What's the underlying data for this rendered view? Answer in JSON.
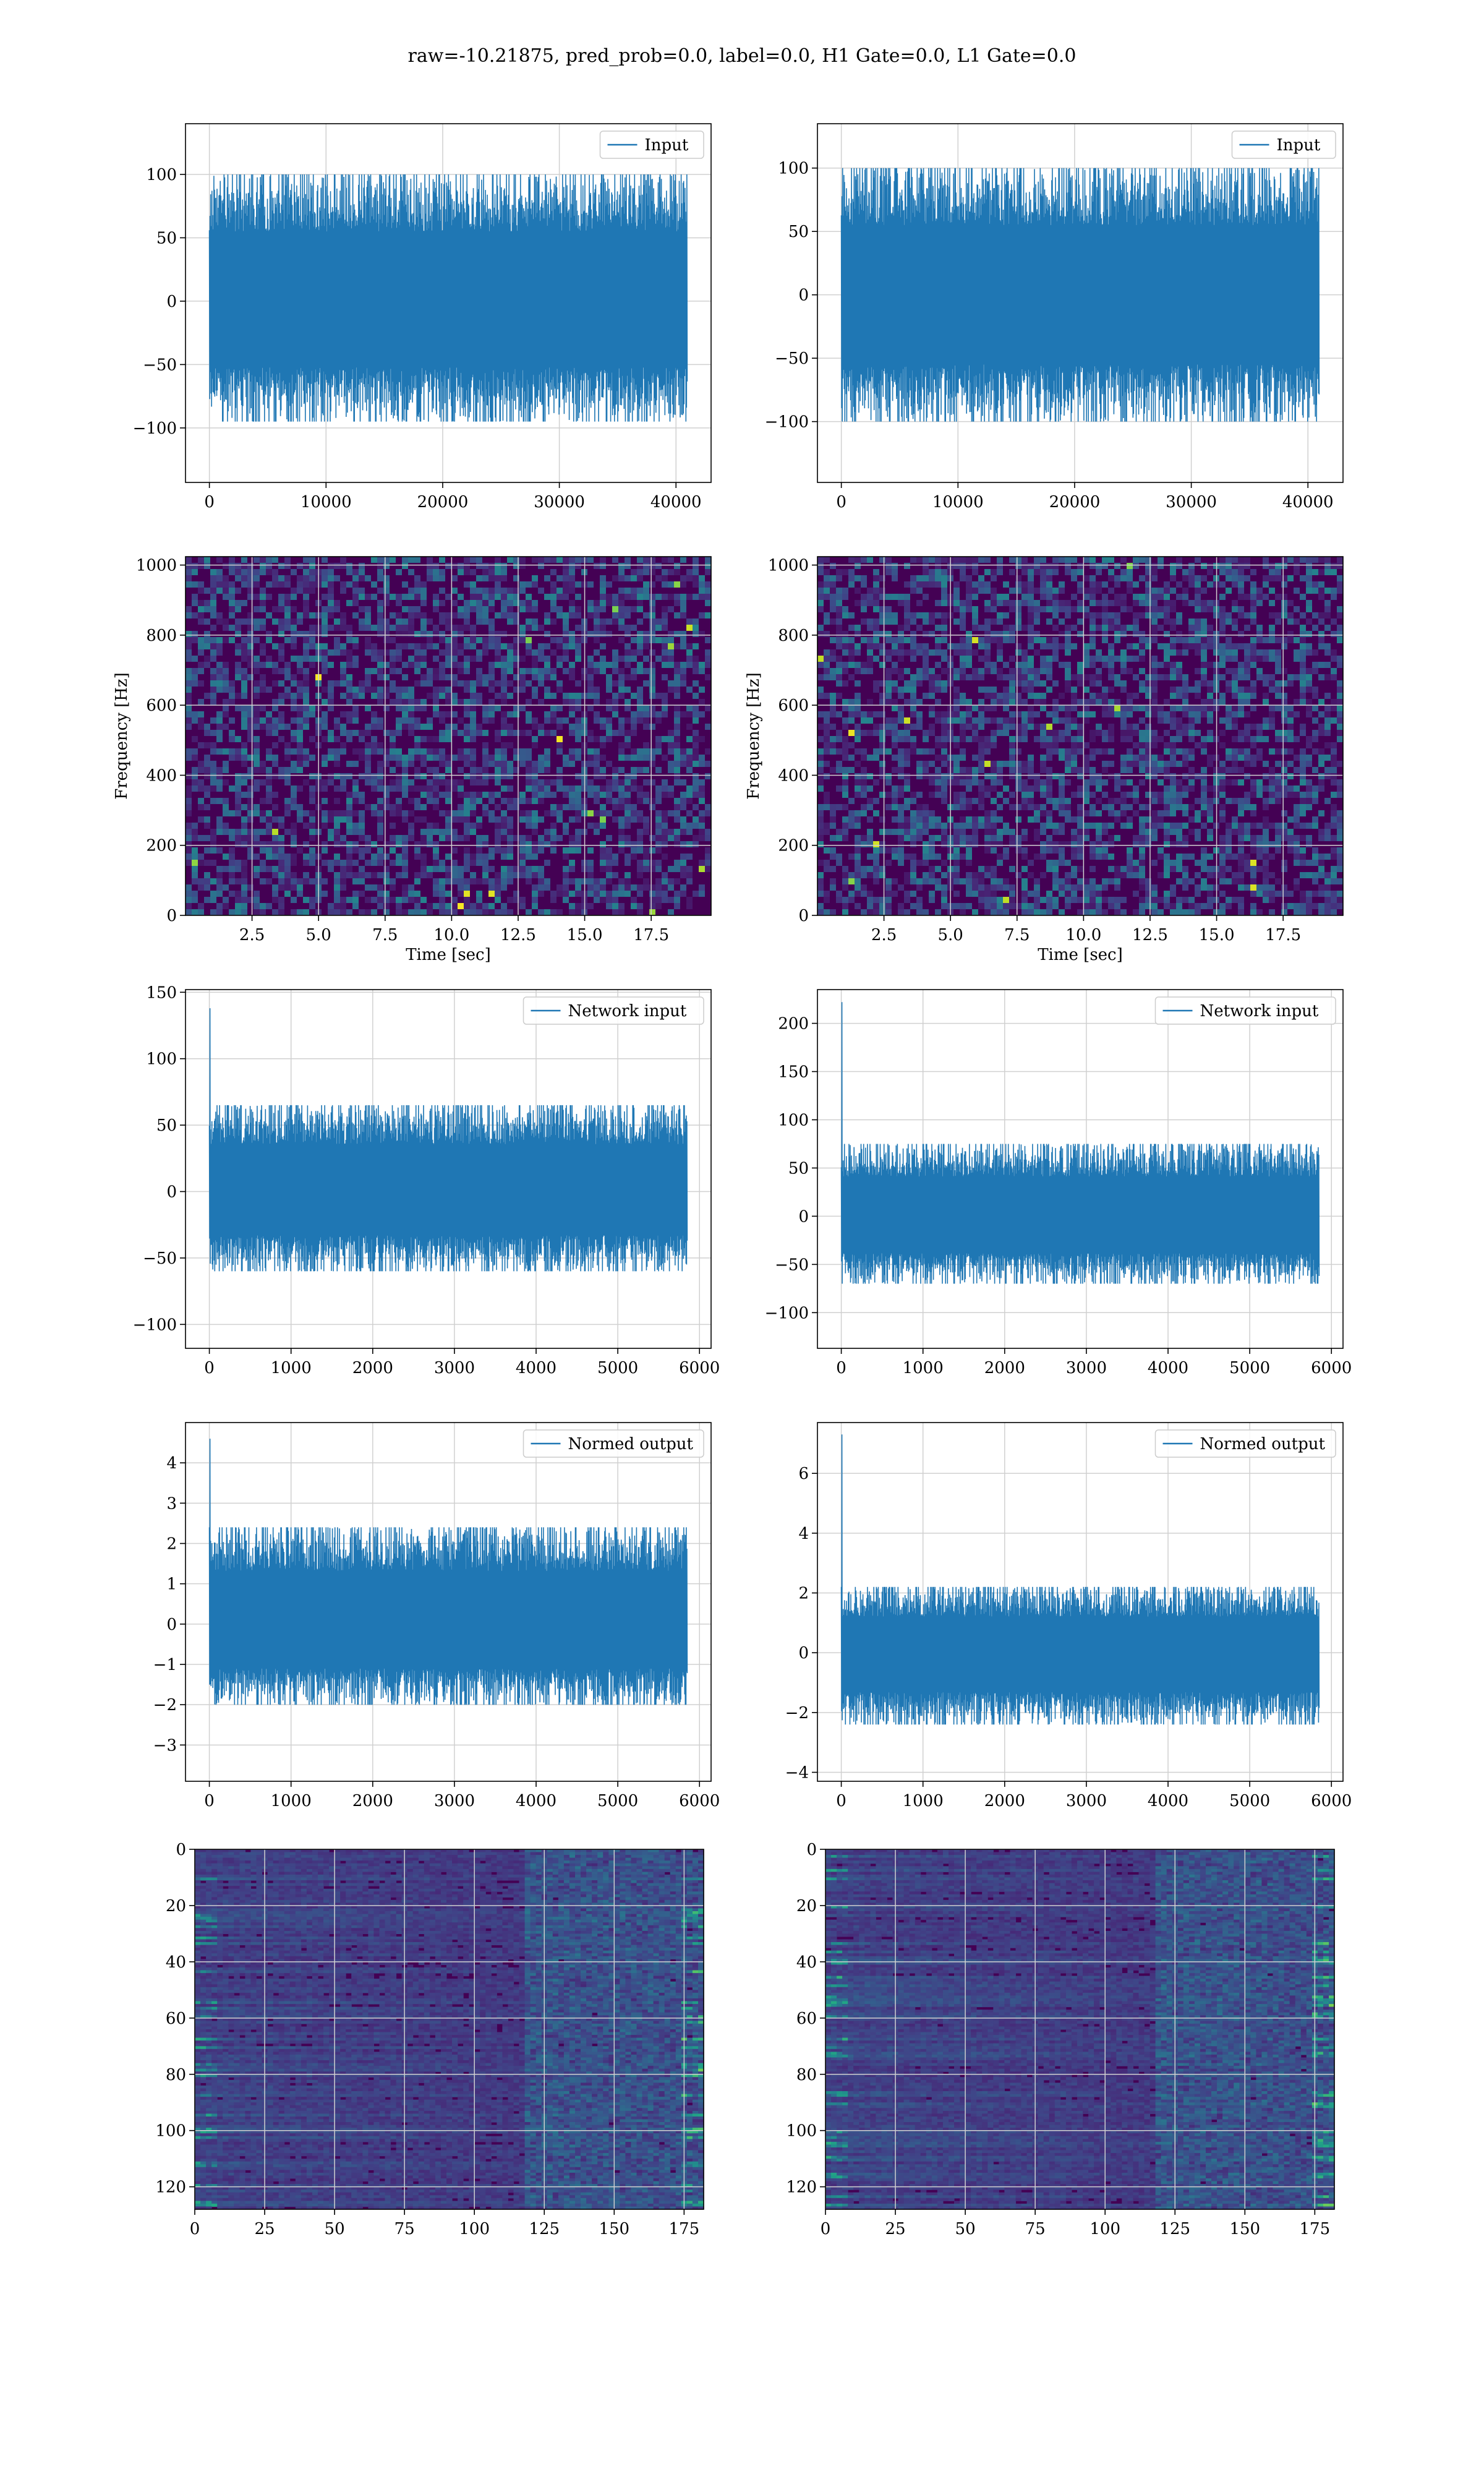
{
  "figure_title": "raw=-10.21875, pred_prob=0.0, label=0.0, H1 Gate=0.0, L1 Gate=0.0",
  "colors": {
    "series": "#1f77b4",
    "grid": "#d0d0d0",
    "viridis_low": "#440154",
    "viridis_mid": "#21918c",
    "viridis_high": "#fde725"
  },
  "chart_data": [
    {
      "type": "line",
      "row": 0,
      "col": 0,
      "series": [
        {
          "name": "Input",
          "color": "#1f77b4"
        }
      ],
      "x": {
        "range": [
          0,
          40960
        ],
        "envelope": [
          -95,
          100
        ]
      },
      "xlim": [
        -2048,
        43008
      ],
      "ylim": [
        -143,
        140
      ],
      "xticks": [
        0,
        10000,
        20000,
        30000,
        40000
      ],
      "xticklabels": [
        "0",
        "10000",
        "20000",
        "30000",
        "40000"
      ],
      "yticks": [
        -100,
        -50,
        0,
        50,
        100
      ],
      "yticklabels": [
        "−100",
        "−50",
        "0",
        "50",
        "100"
      ],
      "xlabel": "",
      "ylabel": "",
      "grid": true,
      "legend": "top-right"
    },
    {
      "type": "line",
      "row": 0,
      "col": 1,
      "series": [
        {
          "name": "Input",
          "color": "#1f77b4"
        }
      ],
      "x": {
        "range": [
          0,
          40960
        ],
        "envelope": [
          -100,
          100
        ]
      },
      "xlim": [
        -2048,
        43008
      ],
      "ylim": [
        -148,
        135
      ],
      "xticks": [
        0,
        10000,
        20000,
        30000,
        40000
      ],
      "xticklabels": [
        "0",
        "10000",
        "20000",
        "30000",
        "40000"
      ],
      "yticks": [
        -100,
        -50,
        0,
        50,
        100
      ],
      "yticklabels": [
        "−100",
        "−50",
        "0",
        "50",
        "100"
      ],
      "xlabel": "",
      "ylabel": "",
      "grid": true,
      "legend": "top-right"
    },
    {
      "type": "heatmap",
      "row": 1,
      "col": 0,
      "colormap": "viridis",
      "xlim": [
        0,
        19.75
      ],
      "ylim": [
        0,
        1024
      ],
      "xticks": [
        2.5,
        5.0,
        7.5,
        10.0,
        12.5,
        15.0,
        17.5
      ],
      "xticklabels": [
        "2.5",
        "5.0",
        "7.5",
        "10.0",
        "12.5",
        "15.0",
        "17.5"
      ],
      "yticks": [
        0,
        200,
        400,
        600,
        800,
        1000
      ],
      "yticklabels": [
        "0",
        "200",
        "400",
        "600",
        "800",
        "1000"
      ],
      "xlabel": "Time [sec]",
      "ylabel": "Frequency [Hz]",
      "grid": true
    },
    {
      "type": "heatmap",
      "row": 1,
      "col": 1,
      "colormap": "viridis",
      "xlim": [
        0,
        19.75
      ],
      "ylim": [
        0,
        1024
      ],
      "xticks": [
        2.5,
        5.0,
        7.5,
        10.0,
        12.5,
        15.0,
        17.5
      ],
      "xticklabels": [
        "2.5",
        "5.0",
        "7.5",
        "10.0",
        "12.5",
        "15.0",
        "17.5"
      ],
      "yticks": [
        0,
        200,
        400,
        600,
        800,
        1000
      ],
      "yticklabels": [
        "0",
        "200",
        "400",
        "600",
        "800",
        "1000"
      ],
      "xlabel": "Time [sec]",
      "ylabel": "Frequency [Hz]",
      "grid": true
    },
    {
      "type": "line",
      "row": 2,
      "col": 0,
      "series": [
        {
          "name": "Network input",
          "color": "#1f77b4"
        }
      ],
      "x": {
        "range": [
          0,
          5850
        ],
        "envelope": [
          -60,
          65
        ],
        "spike": 138
      },
      "xlim": [
        -292,
        6142
      ],
      "ylim": [
        -118,
        152
      ],
      "xticks": [
        0,
        1000,
        2000,
        3000,
        4000,
        5000,
        6000
      ],
      "xticklabels": [
        "0",
        "1000",
        "2000",
        "3000",
        "4000",
        "5000",
        "6000"
      ],
      "yticks": [
        -100,
        -50,
        0,
        50,
        100,
        150
      ],
      "yticklabels": [
        "−100",
        "−50",
        "0",
        "50",
        "100",
        "150"
      ],
      "xlabel": "",
      "ylabel": "",
      "grid": true,
      "legend": "top-right"
    },
    {
      "type": "line",
      "row": 2,
      "col": 1,
      "series": [
        {
          "name": "Network input",
          "color": "#1f77b4"
        }
      ],
      "x": {
        "range": [
          0,
          5850
        ],
        "envelope": [
          -70,
          75
        ],
        "spike": 222
      },
      "xlim": [
        -292,
        6142
      ],
      "ylim": [
        -137,
        235
      ],
      "xticks": [
        0,
        1000,
        2000,
        3000,
        4000,
        5000,
        6000
      ],
      "xticklabels": [
        "0",
        "1000",
        "2000",
        "3000",
        "4000",
        "5000",
        "6000"
      ],
      "yticks": [
        -100,
        -50,
        0,
        50,
        100,
        150,
        200
      ],
      "yticklabels": [
        "−100",
        "−50",
        "0",
        "50",
        "100",
        "150",
        "200"
      ],
      "xlabel": "",
      "ylabel": "",
      "grid": true,
      "legend": "top-right"
    },
    {
      "type": "line",
      "row": 3,
      "col": 0,
      "series": [
        {
          "name": "Normed output",
          "color": "#1f77b4"
        }
      ],
      "x": {
        "range": [
          0,
          5850
        ],
        "envelope": [
          -2.0,
          2.4
        ],
        "spike": 4.6
      },
      "xlim": [
        -292,
        6142
      ],
      "ylim": [
        -3.9,
        5.0
      ],
      "xticks": [
        0,
        1000,
        2000,
        3000,
        4000,
        5000,
        6000
      ],
      "xticklabels": [
        "0",
        "1000",
        "2000",
        "3000",
        "4000",
        "5000",
        "6000"
      ],
      "yticks": [
        -3,
        -2,
        -1,
        0,
        1,
        2,
        3,
        4
      ],
      "yticklabels": [
        "−3",
        "−2",
        "−1",
        "0",
        "1",
        "2",
        "3",
        "4"
      ],
      "xlabel": "",
      "ylabel": "",
      "grid": true,
      "legend": "top-right"
    },
    {
      "type": "line",
      "row": 3,
      "col": 1,
      "series": [
        {
          "name": "Normed output",
          "color": "#1f77b4"
        }
      ],
      "x": {
        "range": [
          0,
          5850
        ],
        "envelope": [
          -2.4,
          2.2
        ],
        "spike": 7.3
      },
      "xlim": [
        -292,
        6142
      ],
      "ylim": [
        -4.3,
        7.7
      ],
      "xticks": [
        0,
        1000,
        2000,
        3000,
        4000,
        5000,
        6000
      ],
      "xticklabels": [
        "0",
        "1000",
        "2000",
        "3000",
        "4000",
        "5000",
        "6000"
      ],
      "yticks": [
        -4,
        -2,
        0,
        2,
        4,
        6
      ],
      "yticklabels": [
        "−4",
        "−2",
        "0",
        "2",
        "4",
        "6"
      ],
      "xlabel": "",
      "ylabel": "",
      "grid": true,
      "legend": "top-right"
    },
    {
      "type": "heatmap",
      "row": 4,
      "col": 0,
      "colormap": "viridis",
      "xlim": [
        0,
        182
      ],
      "ylim": [
        128,
        0
      ],
      "xticks": [
        0,
        25,
        50,
        75,
        100,
        125,
        150,
        175
      ],
      "xticklabels": [
        "0",
        "25",
        "50",
        "75",
        "100",
        "125",
        "150",
        "175"
      ],
      "yticks": [
        0,
        20,
        40,
        60,
        80,
        100,
        120
      ],
      "yticklabels": [
        "0",
        "20",
        "40",
        "60",
        "80",
        "100",
        "120"
      ],
      "xlabel": "",
      "ylabel": "",
      "grid": true
    },
    {
      "type": "heatmap",
      "row": 4,
      "col": 1,
      "colormap": "viridis",
      "xlim": [
        0,
        182
      ],
      "ylim": [
        128,
        0
      ],
      "xticks": [
        0,
        25,
        50,
        75,
        100,
        125,
        150,
        175
      ],
      "xticklabels": [
        "0",
        "25",
        "50",
        "75",
        "100",
        "125",
        "150",
        "175"
      ],
      "yticks": [
        0,
        20,
        40,
        60,
        80,
        100,
        120
      ],
      "yticklabels": [
        "0",
        "20",
        "40",
        "60",
        "80",
        "100",
        "120"
      ],
      "xlabel": "",
      "ylabel": "",
      "grid": true
    }
  ]
}
